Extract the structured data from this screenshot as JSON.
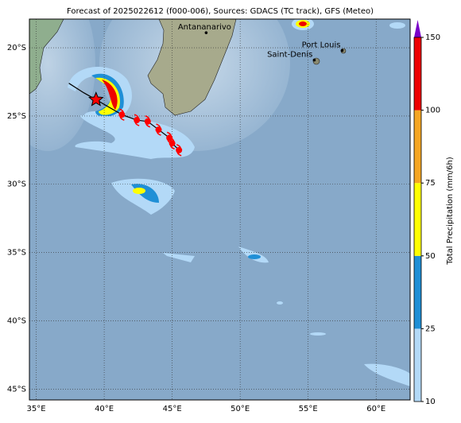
{
  "title": "Forecast of 2025022612 (f000-006), Sources: GDACS (TC track), GFS (Meteo)",
  "map": {
    "xlim": [
      34.5,
      62.5
    ],
    "ylim": [
      -45.8,
      -17.9
    ],
    "xticks": [
      {
        "value": 35,
        "label": "35°E"
      },
      {
        "value": 40,
        "label": "40°E"
      },
      {
        "value": 45,
        "label": "45°E"
      },
      {
        "value": 50,
        "label": "50°E"
      },
      {
        "value": 55,
        "label": "55°E"
      },
      {
        "value": 60,
        "label": "60°E"
      }
    ],
    "yticks": [
      {
        "value": -20,
        "label": "20°S"
      },
      {
        "value": -25,
        "label": "25°S"
      },
      {
        "value": -30,
        "label": "30°S"
      },
      {
        "value": -35,
        "label": "35°S"
      },
      {
        "value": -40,
        "label": "40°S"
      },
      {
        "value": -45,
        "label": "45°S"
      }
    ],
    "cities": [
      {
        "name": "Antananarivo",
        "lon": 47.5,
        "lat": -18.9
      },
      {
        "name": "Port Louis",
        "lon": 57.5,
        "lat": -20.2
      },
      {
        "name": "Saint-Denis",
        "lon": 55.45,
        "lat": -20.9
      }
    ],
    "track": {
      "lon": [
        37.4,
        38.5,
        39.4,
        41.3,
        42.4,
        43.2,
        44.0,
        44.8,
        45.0,
        45.5
      ],
      "lat": [
        -22.6,
        -23.3,
        -23.8,
        -24.9,
        -25.3,
        -25.4,
        -26.0,
        -26.6,
        -27.0,
        -27.5
      ],
      "color": "#ff0000"
    }
  },
  "colorbar": {
    "label": "Total Precipitation (mm/6h)",
    "ticks": [
      10,
      25,
      50,
      75,
      100,
      150
    ],
    "colors": [
      "#b3d9f7",
      "#1f8fd6",
      "#ffff00",
      "#f5a623",
      "#ee0000"
    ],
    "extend_color": "#7a00c8"
  }
}
